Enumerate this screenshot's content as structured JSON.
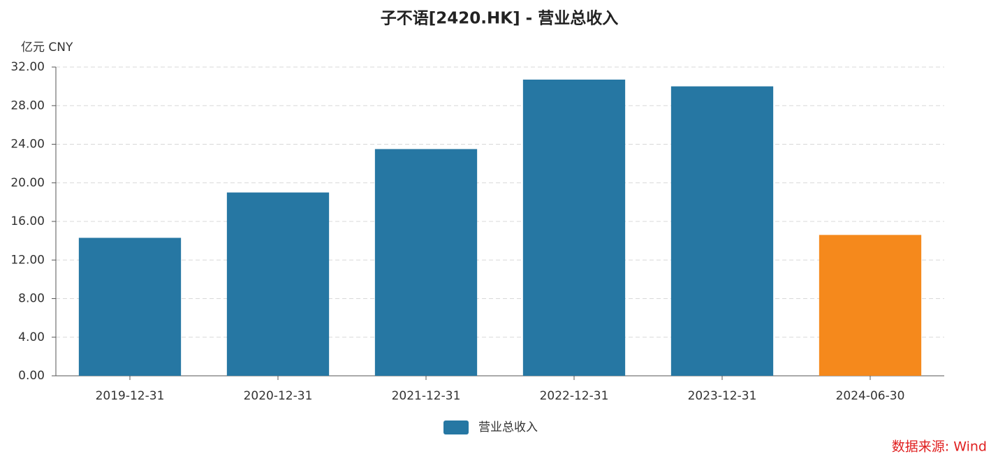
{
  "chart_data": {
    "type": "bar",
    "title": "子不语[2420.HK] - 营业总收入",
    "y_unit_label": "亿元  CNY",
    "categories": [
      "2019-12-31",
      "2020-12-31",
      "2021-12-31",
      "2022-12-31",
      "2023-12-31",
      "2024-06-30"
    ],
    "series": [
      {
        "name": "营业总收入",
        "color": "#2677a3",
        "values": [
          14.3,
          19.0,
          23.5,
          30.7,
          30.0,
          14.6
        ]
      }
    ],
    "bar_colors": [
      "#2677a3",
      "#2677a3",
      "#2677a3",
      "#2677a3",
      "#2677a3",
      "#f5891c"
    ],
    "ylim": [
      0,
      32
    ],
    "yticks": [
      {
        "value": 0,
        "label": "0.00"
      },
      {
        "value": 4,
        "label": "4.00"
      },
      {
        "value": 8,
        "label": "8.00"
      },
      {
        "value": 12,
        "label": "12.00"
      },
      {
        "value": 16,
        "label": "16.00"
      },
      {
        "value": 20,
        "label": "20.00"
      },
      {
        "value": 24,
        "label": "24.00"
      },
      {
        "value": 28,
        "label": "28.00"
      },
      {
        "value": 32,
        "label": "32.00"
      }
    ],
    "grid": true,
    "legend": "bottom",
    "source": "数据来源: Wind"
  }
}
